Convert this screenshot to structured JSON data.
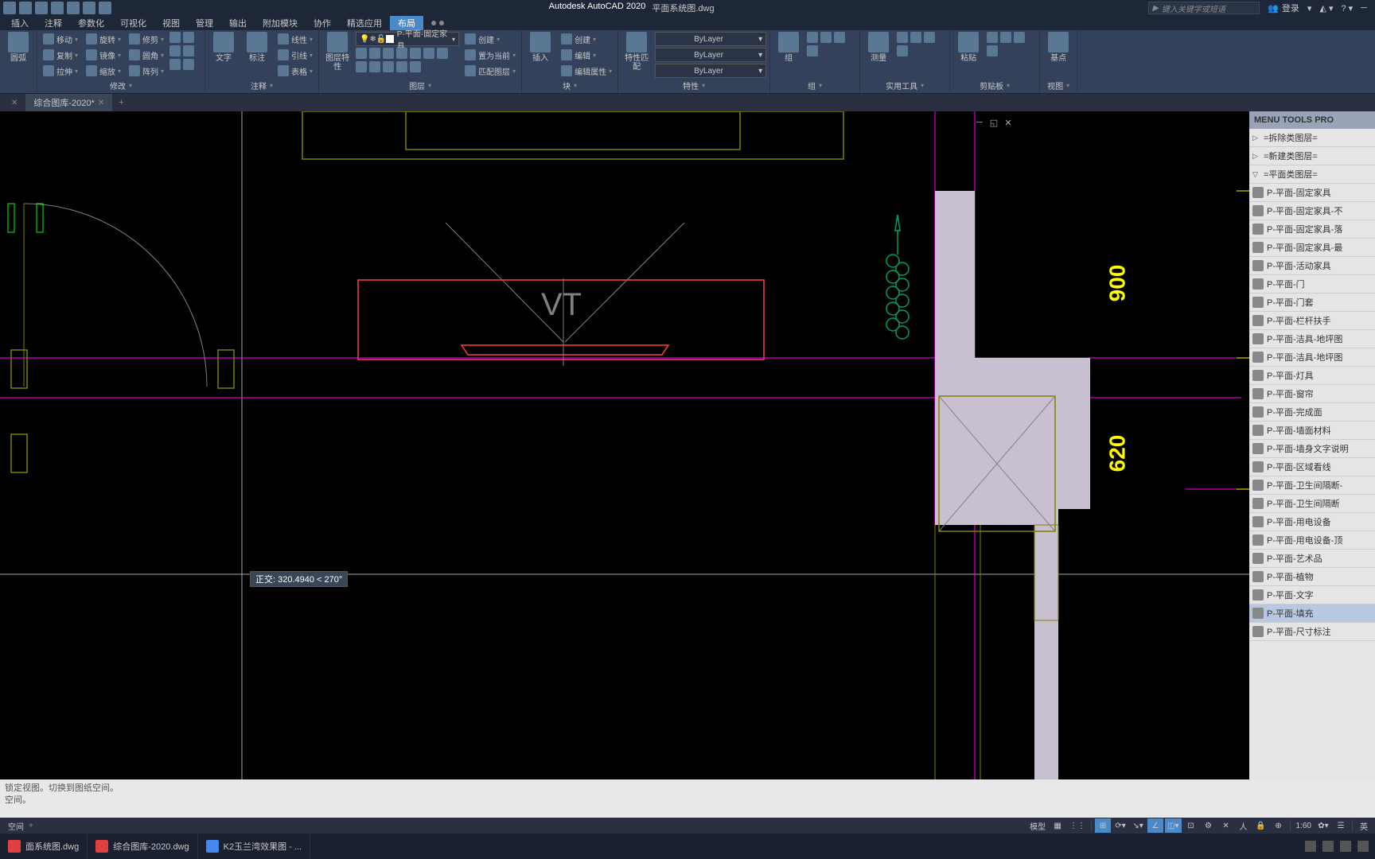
{
  "titlebar": {
    "app_name": "Autodesk AutoCAD 2020",
    "filename": "平面系统图.dwg",
    "search_placeholder": "键入关键字或短语",
    "login_label": "登录"
  },
  "menu": {
    "items": [
      "插入",
      "注释",
      "参数化",
      "可视化",
      "视图",
      "管理",
      "输出",
      "附加模块",
      "协作",
      "精选应用",
      "布局"
    ],
    "active_index": 10
  },
  "ribbon": {
    "panels": [
      {
        "label": "",
        "big_buttons": [
          {
            "label": "圆弧"
          }
        ],
        "small_rows": [
          {
            "icons": 2
          },
          {
            "icons": 2
          },
          {
            "label": "图 ▾"
          }
        ]
      },
      {
        "label": "修改",
        "cols": [
          [
            {
              "icon": true,
              "label": "移动"
            },
            {
              "icon": true,
              "label": "复制"
            },
            {
              "icon": true,
              "label": "拉伸"
            }
          ],
          [
            {
              "icon": true,
              "label": "旋转"
            },
            {
              "icon": true,
              "label": "镜像"
            },
            {
              "icon": true,
              "label": "缩放"
            }
          ],
          [
            {
              "icon": true,
              "label": "修剪"
            },
            {
              "icon": true,
              "label": "圆角"
            },
            {
              "icon": true,
              "label": "阵列"
            }
          ]
        ],
        "extra_icons": 6
      },
      {
        "label": "注释",
        "big_buttons": [
          {
            "label": "文字"
          },
          {
            "label": "标注"
          }
        ],
        "cols": [
          [
            {
              "icon": true,
              "label": "线性"
            },
            {
              "icon": true,
              "label": "引线"
            },
            {
              "icon": true,
              "label": "表格"
            }
          ]
        ]
      },
      {
        "label": "图层",
        "big_buttons": [
          {
            "label": "图层特性"
          }
        ],
        "top_combo": {
          "text": "P-平面-固定家具",
          "swatch": "#ffffff"
        },
        "icon_grid": 12,
        "cols": [
          [
            {
              "icon": true,
              "label": "创建"
            },
            {
              "icon": true,
              "label": "置为当前"
            },
            {
              "icon": true,
              "label": "匹配图层"
            }
          ]
        ]
      },
      {
        "label": "块",
        "big_buttons": [
          {
            "label": "插入"
          }
        ],
        "cols": [
          [
            {
              "icon": true,
              "label": "创建"
            },
            {
              "icon": true,
              "label": "编辑"
            },
            {
              "icon": true,
              "label": "编辑属性"
            }
          ]
        ]
      },
      {
        "label": "特性",
        "big_buttons": [
          {
            "label": "特性匹配"
          }
        ],
        "combos": [
          {
            "text": "ByLayer"
          },
          {
            "text": "ByLayer"
          },
          {
            "text": "ByLayer"
          }
        ]
      },
      {
        "label": "组",
        "big_buttons": [
          {
            "label": "组"
          }
        ],
        "icon_grid": 4
      },
      {
        "label": "实用工具",
        "big_buttons": [
          {
            "label": "测量"
          }
        ],
        "icon_grid": 4
      },
      {
        "label": "剪贴板",
        "big_buttons": [
          {
            "label": "粘贴"
          }
        ],
        "icon_grid": 4
      },
      {
        "label": "视图",
        "big_buttons": [
          {
            "label": "基点"
          }
        ]
      }
    ]
  },
  "doctabs": {
    "tabs": [
      {
        "name": "",
        "x": true
      },
      {
        "name": "综合图库-2020*",
        "x": true,
        "active": true
      }
    ]
  },
  "canvas": {
    "tooltip_text": "正交: 320.4940 < 270°",
    "dim1": "900",
    "dim2": "620",
    "vt_label": "VT",
    "colors": {
      "bg": "#000000",
      "olive": "#808000",
      "red": "#ff4040",
      "magenta": "#ff00ff",
      "green": "#00a060",
      "gray": "#808080",
      "wall_fill": "#c8c0d0",
      "yellow": "#ffff00",
      "crosshair": "#aaaaaa"
    }
  },
  "layer_panel": {
    "header": "MENU TOOLS PRO",
    "groups": [
      {
        "label": "=拆除类图层=",
        "tri": "▷"
      },
      {
        "label": "=新建类图层=",
        "tri": "▷"
      },
      {
        "label": "=平面类图层=",
        "tri": "▽"
      }
    ],
    "layers": [
      "P-平面-固定家具",
      "P-平面-固定家具-不",
      "P-平面-固定家具-落",
      "P-平面-固定家具-最",
      "P-平面-活动家具",
      "P-平面-门",
      "P-平面-门套",
      "P-平面-栏杆扶手",
      "P-平面-洁具-地坪图",
      "P-平面-洁具-地坪图",
      "P-平面-灯具",
      "P-平面-窗帘",
      "P-平面-完成面",
      "P-平面-墙面材料",
      "P-平面-墙身文字说明",
      "P-平面-区域看线",
      "P-平面-卫生间隔断-",
      "P-平面-卫生间隔断",
      "P-平面-用电设备",
      "P-平面-用电设备-顶",
      "P-平面-艺术品",
      "P-平面-植物",
      "P-平面-文字",
      "P-平面-填充",
      "P-平面-尺寸标注"
    ],
    "active_index": 23
  },
  "cmdline": {
    "line1": "锁定视图。切换到图纸空间。",
    "line2": "空间。"
  },
  "mltabs": {
    "label": "空间"
  },
  "statusbar": {
    "model_label": "模型",
    "scale": "1:60",
    "lang": "英"
  },
  "taskbar": {
    "items": [
      {
        "label": "面系统图.dwg",
        "color": "#e04040"
      },
      {
        "label": "综合图库-2020.dwg",
        "color": "#e04040"
      },
      {
        "label": "K2玉兰湾效果图 - ...",
        "color": "#4488ee"
      }
    ]
  }
}
